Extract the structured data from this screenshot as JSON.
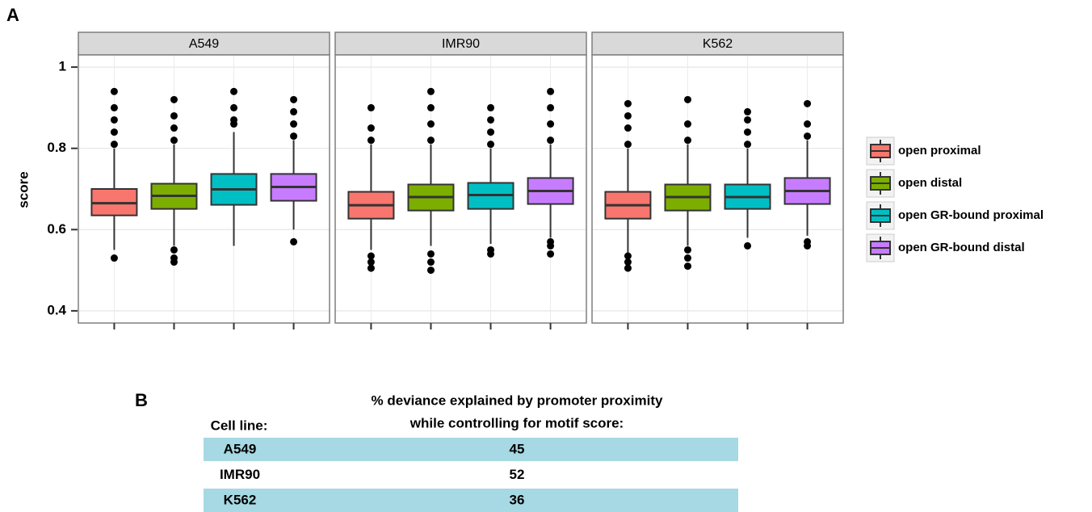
{
  "chart_data": {
    "type": "box",
    "panel_label": "A",
    "y_label": "score",
    "facets": [
      "A549",
      "IMR90",
      "K562"
    ],
    "ylim": [
      0.37,
      1.03
    ],
    "yticks": [
      0.4,
      0.6,
      0.8,
      1
    ],
    "grid": true,
    "legend": "right",
    "series": [
      {
        "name": "open proximal",
        "color": "#f8766d",
        "boxes": [
          {
            "low": 0.55,
            "q1": 0.635,
            "median": 0.665,
            "q3": 0.7,
            "high": 0.8,
            "outliers": [
              0.53,
              0.81,
              0.84,
              0.87,
              0.9,
              0.94
            ]
          },
          {
            "low": 0.55,
            "q1": 0.627,
            "median": 0.66,
            "q3": 0.693,
            "high": 0.81,
            "outliers": [
              0.505,
              0.52,
              0.535,
              0.82,
              0.85,
              0.9
            ]
          },
          {
            "low": 0.54,
            "q1": 0.627,
            "median": 0.66,
            "q3": 0.693,
            "high": 0.8,
            "outliers": [
              0.505,
              0.52,
              0.535,
              0.81,
              0.85,
              0.88,
              0.91
            ]
          }
        ]
      },
      {
        "name": "open distal",
        "color": "#7cae00",
        "boxes": [
          {
            "low": 0.56,
            "q1": 0.651,
            "median": 0.683,
            "q3": 0.713,
            "high": 0.81,
            "outliers": [
              0.52,
              0.53,
              0.55,
              0.82,
              0.85,
              0.88,
              0.92
            ]
          },
          {
            "low": 0.56,
            "q1": 0.647,
            "median": 0.68,
            "q3": 0.711,
            "high": 0.81,
            "outliers": [
              0.5,
              0.52,
              0.54,
              0.82,
              0.86,
              0.9,
              0.94
            ]
          },
          {
            "low": 0.56,
            "q1": 0.647,
            "median": 0.68,
            "q3": 0.711,
            "high": 0.81,
            "outliers": [
              0.51,
              0.53,
              0.55,
              0.82,
              0.86,
              0.92
            ]
          }
        ]
      },
      {
        "name": "open GR-bound proximal",
        "color": "#00bfc4",
        "boxes": [
          {
            "low": 0.56,
            "q1": 0.661,
            "median": 0.699,
            "q3": 0.737,
            "high": 0.84,
            "outliers": [
              0.86,
              0.87,
              0.9,
              0.94
            ]
          },
          {
            "low": 0.565,
            "q1": 0.651,
            "median": 0.685,
            "q3": 0.715,
            "high": 0.8,
            "outliers": [
              0.54,
              0.55,
              0.81,
              0.84,
              0.87,
              0.9
            ]
          },
          {
            "low": 0.58,
            "q1": 0.651,
            "median": 0.68,
            "q3": 0.711,
            "high": 0.8,
            "outliers": [
              0.56,
              0.81,
              0.84,
              0.87,
              0.89
            ]
          }
        ]
      },
      {
        "name": "open GR-bound distal",
        "color": "#c77cff",
        "boxes": [
          {
            "low": 0.6,
            "q1": 0.671,
            "median": 0.705,
            "q3": 0.737,
            "high": 0.82,
            "outliers": [
              0.57,
              0.83,
              0.86,
              0.89,
              0.92
            ]
          },
          {
            "low": 0.58,
            "q1": 0.663,
            "median": 0.695,
            "q3": 0.727,
            "high": 0.81,
            "outliers": [
              0.54,
              0.56,
              0.57,
              0.82,
              0.86,
              0.9,
              0.94
            ]
          },
          {
            "low": 0.585,
            "q1": 0.663,
            "median": 0.695,
            "q3": 0.727,
            "high": 0.82,
            "outliers": [
              0.56,
              0.57,
              0.83,
              0.86,
              0.91
            ]
          }
        ]
      }
    ]
  },
  "table": {
    "panel_label": "B",
    "title_lines": [
      "% deviance explained by promoter proximity",
      "while controlling for motif score:"
    ],
    "header": "Cell line:",
    "rows": [
      [
        "A549",
        45
      ],
      [
        "IMR90",
        52
      ],
      [
        "K562",
        36
      ]
    ]
  }
}
